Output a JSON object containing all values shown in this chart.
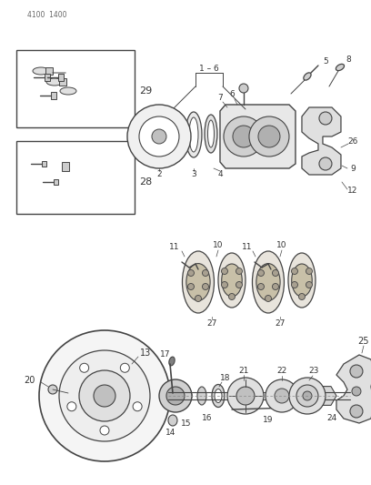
{
  "header_text": "4100 1400",
  "bg_color": "#ffffff",
  "lc": "#444444",
  "tc": "#333333",
  "figsize": [
    4.08,
    5.33
  ],
  "dpi": 100
}
